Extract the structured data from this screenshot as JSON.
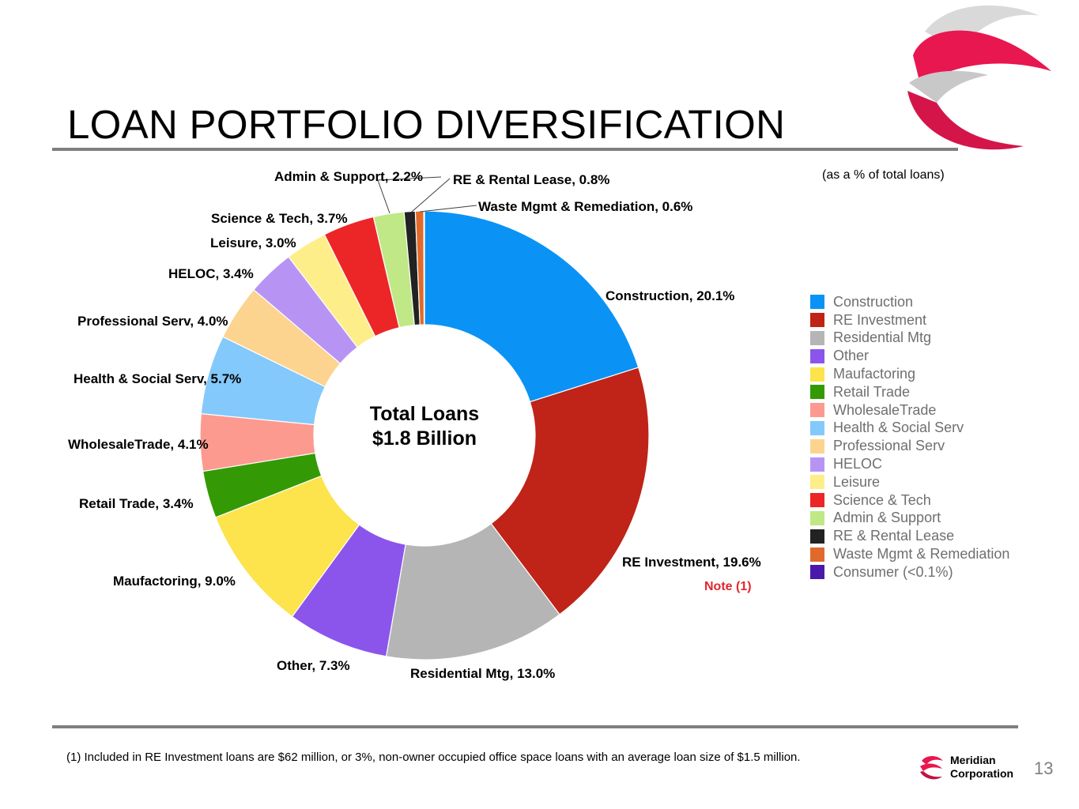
{
  "title": "LOAN PORTFOLIO DIVERSIFICATION",
  "subtitle": "(as a % of total loans)",
  "center_line1": "Total Loans",
  "center_line2": "$1.8 Billion",
  "note_marker": "Note (1)",
  "footnote": "(1) Included in RE Investment loans are $62 million, or 3%, non-owner occupied office space loans with an average loan size of $1.5 million.",
  "brand_line1": "Meridian",
  "brand_line2": "Corporation",
  "page_number": "13",
  "colors": {
    "brand_red": "#e8174f",
    "note_red": "#e0282c",
    "rule_gray": "#7f7f7f"
  },
  "chart_data": {
    "type": "pie",
    "donut": true,
    "unit": "% of total loans",
    "slices": [
      {
        "name": "Construction",
        "value": 20.1,
        "label": "Construction, 20.1%",
        "color": "#0a93f5"
      },
      {
        "name": "RE Investment",
        "value": 19.6,
        "label": "RE Investment, 19.6%",
        "color": "#c02318"
      },
      {
        "name": "Residential Mtg",
        "value": 13.0,
        "label": "Residential Mtg, 13.0%",
        "color": "#b5b5b5"
      },
      {
        "name": "Other",
        "value": 7.3,
        "label": "Other, 7.3%",
        "color": "#8b55ec"
      },
      {
        "name": "Maufactoring",
        "value": 9.0,
        "label": "Maufactoring, 9.0%",
        "color": "#fde34c"
      },
      {
        "name": "Retail Trade",
        "value": 3.4,
        "label": "Retail Trade, 3.4%",
        "color": "#339a05"
      },
      {
        "name": "WholesaleTrade",
        "value": 4.1,
        "label": "WholesaleTrade, 4.1%",
        "color": "#fc9a90"
      },
      {
        "name": "Health & Social Serv",
        "value": 5.7,
        "label": "Health & Social Serv, 5.7%",
        "color": "#83c9fb"
      },
      {
        "name": "Professional Serv",
        "value": 4.0,
        "label": "Professional Serv, 4.0%",
        "color": "#fcd490"
      },
      {
        "name": "HELOC",
        "value": 3.4,
        "label": "HELOC, 3.4%",
        "color": "#b794f4"
      },
      {
        "name": "Leisure",
        "value": 3.0,
        "label": "Leisure, 3.0%",
        "color": "#fdee8a"
      },
      {
        "name": "Science & Tech",
        "value": 3.7,
        "label": "Science & Tech, 3.7%",
        "color": "#ec2626"
      },
      {
        "name": "Admin & Support",
        "value": 2.2,
        "label": "Admin & Support, 2.2%",
        "color": "#c0e886"
      },
      {
        "name": "RE & Rental Lease",
        "value": 0.8,
        "label": "RE & Rental Lease, 0.8%",
        "color": "#222222"
      },
      {
        "name": "Waste Mgmt & Remediation",
        "value": 0.6,
        "label": "Waste Mgmt & Remediation, 0.6%",
        "color": "#e06a2c"
      },
      {
        "name": "Consumer (<0.1%)",
        "value": 0.05,
        "label": "",
        "color": "#4a19ac"
      }
    ],
    "legend_placement": "right"
  }
}
